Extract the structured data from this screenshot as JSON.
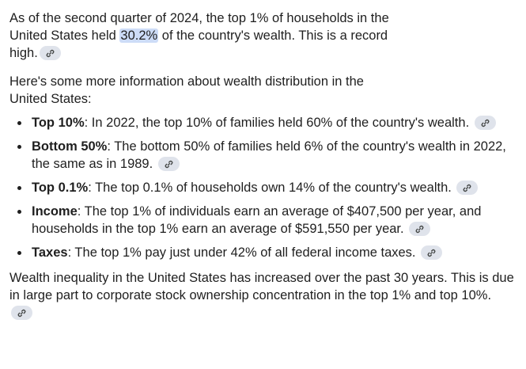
{
  "intro": {
    "before": "As of the second quarter of 2024, the top 1% of households in the United States held ",
    "highlight": "30.2%",
    "after": " of the country's wealth. This is a record high."
  },
  "lead": "Here's some more information about wealth distribution in the United States:",
  "bullets": [
    {
      "term": "Top 10%",
      "text": ": In 2022, the top 10% of families held 60% of the country's wealth."
    },
    {
      "term": "Bottom 50%",
      "text": ": The bottom 50% of families held 6% of the country's wealth in 2022, the same as in 1989."
    },
    {
      "term": "Top 0.1%",
      "text": ": The top 0.1% of households own 14% of the country's wealth."
    },
    {
      "term": "Income",
      "text": ": The top 1% of individuals earn an average of $407,500 per year, and households in the top 1% earn an average of $591,550 per year."
    },
    {
      "term": "Taxes",
      "text": ": The top 1% pay just under 42% of all federal income taxes."
    }
  ],
  "closing": "Wealth inequality in the United States has increased over the past 30 years. This is due in large part to corporate stock ownership concentration in the top 1% and top 10%.",
  "colors": {
    "text": "#1f1f1f",
    "highlight": "#cddcf7",
    "chip": "#dfe3eb"
  },
  "icons": {
    "source_chip": "link-icon"
  }
}
